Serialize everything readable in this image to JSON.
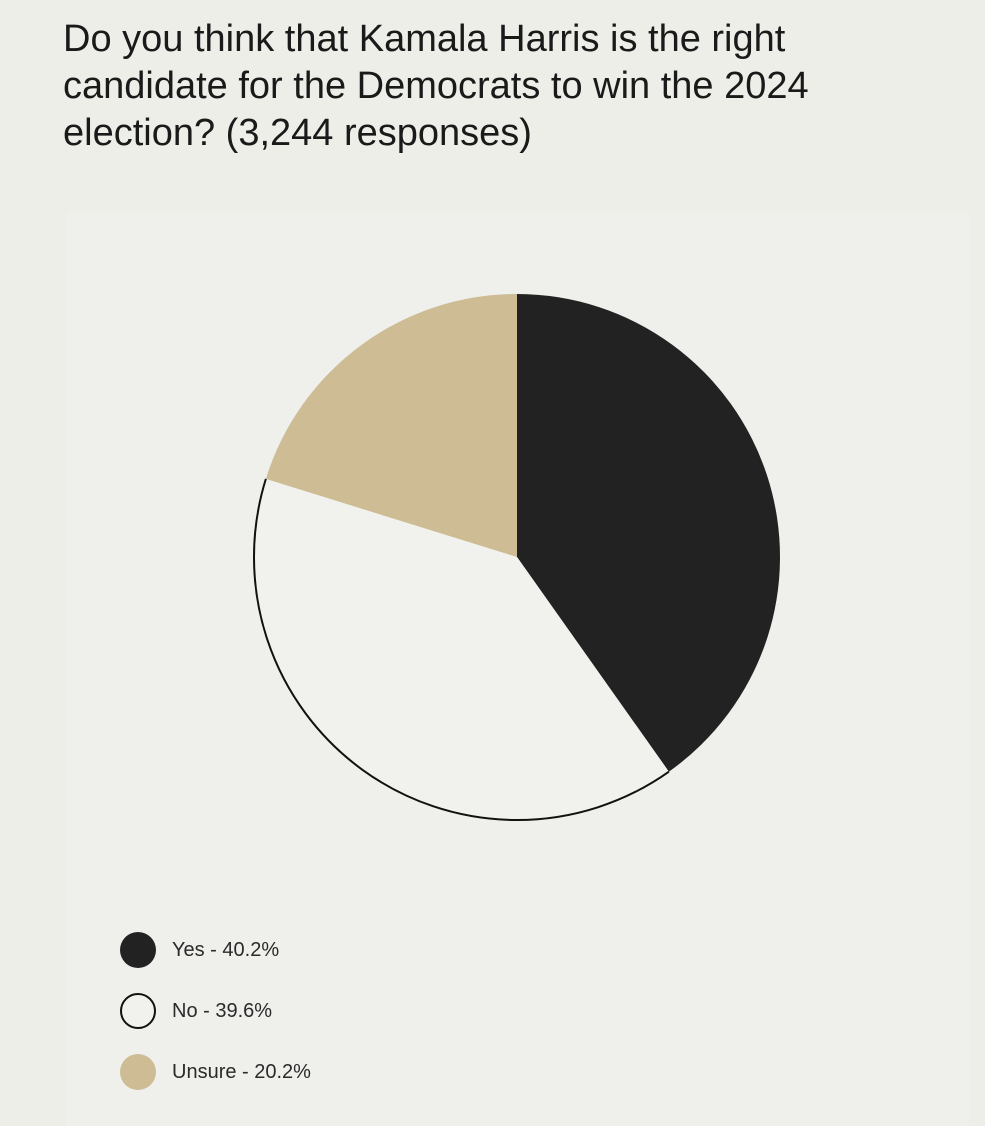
{
  "title": "Do you think that Kamala Harris is the right candidate for the Democrats to win the 2024 election? (3,244 responses)",
  "chart_data": {
    "type": "pie",
    "title": "Do you think that Kamala Harris is the right candidate for the Democrats to win the 2024 election? (3,244 responses)",
    "total_responses": 3244,
    "start_angle": "12 o'clock",
    "direction": "clockwise",
    "slices": [
      {
        "name": "Yes",
        "value": 40.2,
        "label": "Yes - 40.2%",
        "color": "#222222",
        "outline": false
      },
      {
        "name": "No",
        "value": 39.6,
        "label": "No - 39.6%",
        "color": "#f1f1ed",
        "outline": true
      },
      {
        "name": "Unsure",
        "value": 20.2,
        "label": "Unsure - 20.2%",
        "color": "#cdbc94",
        "outline": false
      }
    ],
    "legend_position": "bottom-left",
    "stroke_color": "#111111"
  }
}
